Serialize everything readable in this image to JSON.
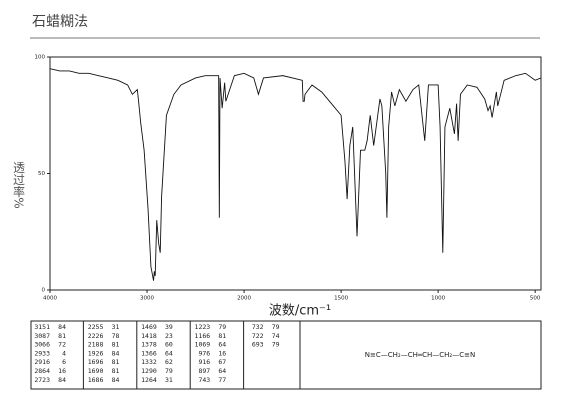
{
  "chart_data": {
    "type": "line",
    "title": "石蜡糊法",
    "y_label": "透过率%",
    "x_label": "波数/cm⁻¹",
    "xlim": [
      4000,
      470
    ],
    "xticks": [
      4000,
      3000,
      2000,
      1500,
      1000,
      500
    ],
    "ylim": [
      0,
      100
    ],
    "yticks": [
      0,
      50,
      100
    ],
    "grid": false,
    "color": "#111111",
    "x": [
      4000,
      3900,
      3800,
      3700,
      3600,
      3500,
      3400,
      3300,
      3200,
      3151,
      3100,
      3087,
      3066,
      3030,
      2990,
      2960,
      2933,
      2925,
      2916,
      2900,
      2880,
      2864,
      2850,
      2800,
      2723,
      2650,
      2500,
      2400,
      2300,
      2262,
      2255,
      2248,
      2226,
      2200,
      2188,
      2100,
      2000,
      1950,
      1926,
      1900,
      1800,
      1700,
      1696,
      1690,
      1686,
      1650,
      1600,
      1550,
      1500,
      1480,
      1469,
      1455,
      1440,
      1418,
      1400,
      1378,
      1366,
      1350,
      1332,
      1300,
      1290,
      1270,
      1264,
      1255,
      1240,
      1223,
      1200,
      1166,
      1130,
      1100,
      1069,
      1050,
      1000,
      990,
      976,
      965,
      940,
      916,
      905,
      897,
      885,
      850,
      800,
      760,
      743,
      732,
      722,
      700,
      693,
      660,
      600,
      550,
      500,
      470
    ],
    "values": [
      95,
      94,
      94,
      93,
      93,
      92,
      91,
      90,
      88,
      84,
      86,
      81,
      72,
      60,
      35,
      10,
      4,
      8,
      6,
      30,
      20,
      16,
      40,
      75,
      84,
      88,
      91,
      92,
      92,
      92,
      31,
      91,
      78,
      89,
      81,
      92,
      93,
      91,
      84,
      91,
      92,
      90,
      81,
      81,
      84,
      88,
      85,
      80,
      75,
      55,
      39,
      62,
      70,
      23,
      60,
      60,
      64,
      75,
      62,
      82,
      79,
      50,
      31,
      70,
      85,
      79,
      86,
      81,
      86,
      88,
      64,
      88,
      88,
      70,
      16,
      70,
      78,
      67,
      80,
      64,
      84,
      88,
      87,
      82,
      77,
      79,
      74,
      85,
      79,
      90,
      92,
      93,
      90,
      91
    ],
    "peaks": [
      [
        [
          3151,
          84
        ],
        [
          3087,
          81
        ],
        [
          3066,
          72
        ],
        [
          2933,
          4
        ],
        [
          2916,
          6
        ],
        [
          2864,
          16
        ],
        [
          2723,
          84
        ]
      ],
      [
        [
          2255,
          31
        ],
        [
          2226,
          78
        ],
        [
          2188,
          81
        ],
        [
          1926,
          84
        ],
        [
          1696,
          81
        ],
        [
          1690,
          81
        ],
        [
          1686,
          84
        ]
      ],
      [
        [
          1469,
          39
        ],
        [
          1418,
          23
        ],
        [
          1378,
          60
        ],
        [
          1366,
          64
        ],
        [
          1332,
          62
        ],
        [
          1290,
          79
        ],
        [
          1264,
          31
        ]
      ],
      [
        [
          1223,
          79
        ],
        [
          1166,
          81
        ],
        [
          1069,
          64
        ],
        [
          976,
          16
        ],
        [
          916,
          67
        ],
        [
          897,
          64
        ],
        [
          743,
          77
        ]
      ],
      [
        [
          732,
          79
        ],
        [
          722,
          74
        ],
        [
          693,
          79
        ]
      ]
    ],
    "structure": "N≡C—CH₂—CH═CH—CH₂—C≡N"
  }
}
